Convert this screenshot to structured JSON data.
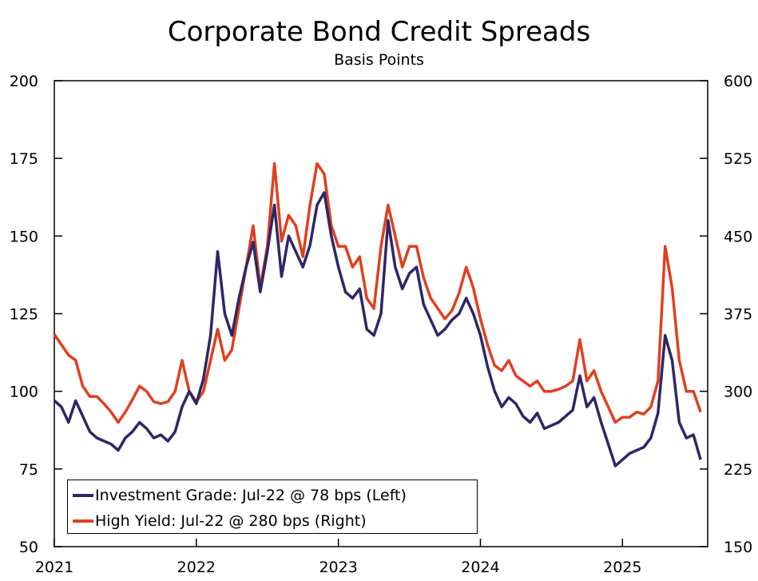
{
  "colors": {
    "ig": "#2e2668",
    "hy": "#e0401f",
    "axis": "#000000"
  },
  "legend": {
    "ig_label": "Investment Grade: Jul-22 @ 78 bps (Left)",
    "hy_label": "High Yield: Jul-22 @ 280 bps (Right)",
    "placement": "bottom-left"
  },
  "chart_data": {
    "type": "line",
    "title": "Corporate Bond Credit Spreads",
    "subtitle": "Basis Points",
    "xlabel": "",
    "ylabel": "",
    "x_range": [
      2021.0,
      2025.6
    ],
    "x_ticks": [
      2021,
      2022,
      2023,
      2024,
      2025
    ],
    "x_tick_labels": [
      "2021",
      "2022",
      "2023",
      "2024",
      "2025"
    ],
    "ylim_left": [
      50,
      200
    ],
    "yticks_left": [
      50,
      75,
      100,
      125,
      150,
      175,
      200
    ],
    "ylim_right": [
      150,
      600
    ],
    "yticks_right": [
      150,
      225,
      300,
      375,
      450,
      525,
      600
    ],
    "grid": false,
    "series": [
      {
        "name": "Investment Grade: Jul-22 @ 78 bps (Left)",
        "axis": "left",
        "x": [
          2021.0,
          2021.05,
          2021.1,
          2021.15,
          2021.2,
          2021.25,
          2021.3,
          2021.35,
          2021.4,
          2021.45,
          2021.5,
          2021.55,
          2021.6,
          2021.65,
          2021.7,
          2021.75,
          2021.8,
          2021.85,
          2021.9,
          2021.95,
          2022.0,
          2022.05,
          2022.1,
          2022.15,
          2022.2,
          2022.25,
          2022.3,
          2022.35,
          2022.4,
          2022.45,
          2022.5,
          2022.55,
          2022.6,
          2022.65,
          2022.7,
          2022.75,
          2022.8,
          2022.85,
          2022.9,
          2022.95,
          2023.0,
          2023.05,
          2023.1,
          2023.15,
          2023.2,
          2023.25,
          2023.3,
          2023.35,
          2023.4,
          2023.45,
          2023.5,
          2023.55,
          2023.6,
          2023.65,
          2023.7,
          2023.75,
          2023.8,
          2023.85,
          2023.9,
          2023.95,
          2024.0,
          2024.05,
          2024.1,
          2024.15,
          2024.2,
          2024.25,
          2024.3,
          2024.35,
          2024.4,
          2024.45,
          2024.5,
          2024.55,
          2024.6,
          2024.65,
          2024.7,
          2024.75,
          2024.8,
          2024.85,
          2024.9,
          2024.95,
          2025.0,
          2025.05,
          2025.1,
          2025.15,
          2025.2,
          2025.25,
          2025.3,
          2025.35,
          2025.4,
          2025.45,
          2025.5,
          2025.55
        ],
        "values": [
          97,
          95,
          90,
          97,
          92,
          87,
          85,
          84,
          83,
          81,
          85,
          87,
          90,
          88,
          85,
          86,
          84,
          87,
          95,
          100,
          96,
          104,
          118,
          145,
          125,
          118,
          130,
          140,
          148,
          132,
          145,
          160,
          137,
          150,
          145,
          140,
          147,
          160,
          164,
          150,
          140,
          132,
          130,
          133,
          120,
          118,
          125,
          155,
          140,
          133,
          138,
          140,
          128,
          123,
          118,
          120,
          123,
          125,
          130,
          125,
          118,
          108,
          100,
          95,
          98,
          96,
          92,
          90,
          93,
          88,
          89,
          90,
          92,
          94,
          105,
          95,
          98,
          90,
          83,
          76,
          78,
          80,
          81,
          82,
          85,
          93,
          118,
          110,
          90,
          85,
          86,
          78
        ],
        "color": "#2e2668"
      },
      {
        "name": "High Yield: Jul-22 @ 280 bps (Right)",
        "axis": "right",
        "x": [
          2021.0,
          2021.05,
          2021.1,
          2021.15,
          2021.2,
          2021.25,
          2021.3,
          2021.35,
          2021.4,
          2021.45,
          2021.5,
          2021.55,
          2021.6,
          2021.65,
          2021.7,
          2021.75,
          2021.8,
          2021.85,
          2021.9,
          2021.95,
          2022.0,
          2022.05,
          2022.1,
          2022.15,
          2022.2,
          2022.25,
          2022.3,
          2022.35,
          2022.4,
          2022.45,
          2022.5,
          2022.55,
          2022.6,
          2022.65,
          2022.7,
          2022.75,
          2022.8,
          2022.85,
          2022.9,
          2022.95,
          2023.0,
          2023.05,
          2023.1,
          2023.15,
          2023.2,
          2023.25,
          2023.3,
          2023.35,
          2023.4,
          2023.45,
          2023.5,
          2023.55,
          2023.6,
          2023.65,
          2023.7,
          2023.75,
          2023.8,
          2023.85,
          2023.9,
          2023.95,
          2024.0,
          2024.05,
          2024.1,
          2024.15,
          2024.2,
          2024.25,
          2024.3,
          2024.35,
          2024.4,
          2024.45,
          2024.5,
          2024.55,
          2024.6,
          2024.65,
          2024.7,
          2024.75,
          2024.8,
          2024.85,
          2024.9,
          2024.95,
          2025.0,
          2025.05,
          2025.1,
          2025.15,
          2025.2,
          2025.25,
          2025.3,
          2025.35,
          2025.4,
          2025.45,
          2025.5,
          2025.55
        ],
        "values": [
          355,
          345,
          335,
          330,
          305,
          295,
          295,
          288,
          280,
          270,
          280,
          292,
          305,
          300,
          290,
          288,
          290,
          300,
          330,
          300,
          290,
          300,
          330,
          360,
          330,
          340,
          380,
          420,
          460,
          400,
          440,
          520,
          445,
          470,
          460,
          430,
          480,
          520,
          510,
          460,
          440,
          440,
          420,
          430,
          390,
          380,
          440,
          480,
          450,
          420,
          440,
          440,
          410,
          390,
          380,
          370,
          378,
          395,
          420,
          400,
          370,
          345,
          325,
          320,
          330,
          315,
          310,
          305,
          310,
          300,
          300,
          302,
          305,
          310,
          350,
          310,
          320,
          300,
          285,
          270,
          275,
          275,
          280,
          278,
          285,
          310,
          440,
          400,
          330,
          300,
          300,
          280
        ],
        "color": "#e0401f"
      }
    ]
  }
}
